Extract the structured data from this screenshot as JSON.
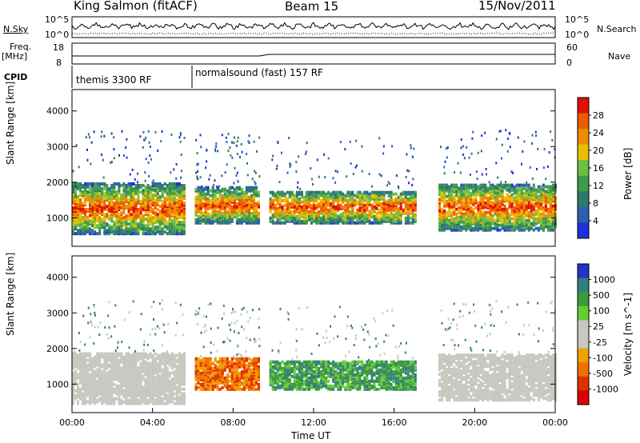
{
  "header": {
    "station": "King Salmon (fitACF)",
    "beam": "Beam 15",
    "date": "15/Nov/2011"
  },
  "top_panel_labels": {
    "left_nsky": "N.Sky",
    "right_nsearch": "N.Search",
    "left_freq": "Freq.",
    "left_freq_unit": "[MHz]",
    "right_nave": "Nave",
    "cpid": "CPID",
    "noise_ticks": [
      "10^5",
      "10^0"
    ],
    "freq_ticks": [
      "18",
      "8"
    ],
    "nave_ticks": [
      "60",
      "0"
    ]
  },
  "cpid_segments": [
    {
      "label": "themis 3300 RF",
      "start_hour": 0.0
    },
    {
      "label": "normalsound (fast) 157 RF",
      "start_hour": 6.0
    }
  ],
  "colors": {
    "power_scale": [
      "#1f2fd9",
      "#2d5fb0",
      "#2e7a6a",
      "#3f9a4a",
      "#6cc040",
      "#e8c000",
      "#f08c00",
      "#ee5a00",
      "#e01000"
    ],
    "velocity_scale": [
      "#2233cc",
      "#337f7f",
      "#3c9a3c",
      "#66cc33",
      "#c8c8c0",
      "#c8c8c0",
      "#f0a000",
      "#f07000",
      "#e03000",
      "#dd0000"
    ]
  },
  "chart_data": [
    {
      "type": "heatmap",
      "name": "Power",
      "ylabel": "Slant Range [km]",
      "yticks": [
        "1000",
        "2000",
        "3000",
        "4000"
      ],
      "ylim": [
        200,
        4600
      ],
      "colorbar_label": "Power [dB]",
      "colorbar_ticks": [
        "4",
        "8",
        "12",
        "16",
        "20",
        "24",
        "28"
      ],
      "clim": [
        0,
        32
      ],
      "echo_regions": [
        {
          "start_hour": 0.0,
          "end_hour": 5.6,
          "range_min_km": 600,
          "range_max_km": 2000,
          "power_db": 22
        },
        {
          "start_hour": 6.1,
          "end_hour": 9.3,
          "range_min_km": 900,
          "range_max_km": 1900,
          "power_db": 24
        },
        {
          "start_hour": 9.8,
          "end_hour": 17.0,
          "range_min_km": 900,
          "range_max_km": 1800,
          "power_db": 18
        },
        {
          "start_hour": 18.2,
          "end_hour": 24.0,
          "range_min_km": 700,
          "range_max_km": 2000,
          "power_db": 16
        }
      ]
    },
    {
      "type": "heatmap",
      "name": "Velocity",
      "ylabel": "Slant Range [km]",
      "yticks": [
        "1000",
        "2000",
        "3000",
        "4000"
      ],
      "ylim": [
        200,
        4600
      ],
      "colorbar_label": "Velocity [m s^-1]",
      "colorbar_ticks": [
        "1000",
        "500",
        "100",
        "25",
        "-25",
        "-100",
        "-500",
        "-1000"
      ],
      "echo_regions": [
        {
          "start_hour": 0.0,
          "end_hour": 5.6,
          "range_min_km": 500,
          "range_max_km": 1900,
          "velocity_ms": 0
        },
        {
          "start_hour": 6.1,
          "end_hour": 9.3,
          "range_min_km": 900,
          "range_max_km": 1800,
          "velocity_ms": -300
        },
        {
          "start_hour": 9.8,
          "end_hour": 17.0,
          "range_min_km": 900,
          "range_max_km": 1700,
          "velocity_ms": 150
        },
        {
          "start_hour": 18.2,
          "end_hour": 24.0,
          "range_min_km": 600,
          "range_max_km": 1900,
          "velocity_ms": 0
        }
      ]
    }
  ],
  "x_axis": {
    "label": "Time UT",
    "ticks": [
      "00:00",
      "04:00",
      "08:00",
      "12:00",
      "16:00",
      "20:00",
      "00:00"
    ],
    "range_hours": [
      0,
      24
    ]
  }
}
